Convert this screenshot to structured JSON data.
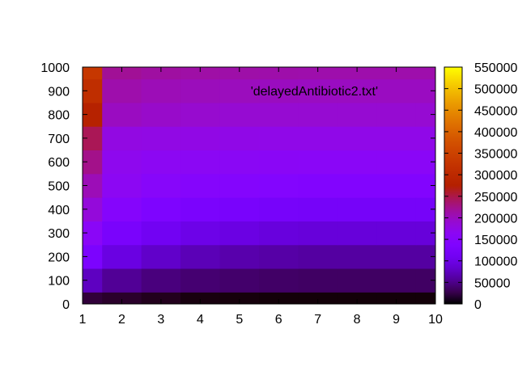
{
  "chart_data": {
    "type": "heatmap",
    "title": "",
    "xlabel": "",
    "ylabel": "",
    "key_title": "'delayedAntibiotic2.txt'",
    "colormap": "gnuplot (black-blue-purple-red-orange-yellow)",
    "xlim": [
      1,
      10
    ],
    "ylim": [
      0,
      1000
    ],
    "zlim": [
      0,
      550000
    ],
    "x_ticks": [
      "1",
      "2",
      "3",
      "4",
      "5",
      "6",
      "7",
      "8",
      "9",
      "10"
    ],
    "y_ticks": [
      "0",
      "100",
      "200",
      "300",
      "400",
      "500",
      "600",
      "700",
      "800",
      "900",
      "1000"
    ],
    "colorbar_ticks": [
      "0",
      "50000",
      "100000",
      "150000",
      "200000",
      "250000",
      "300000",
      "350000",
      "400000",
      "450000",
      "500000",
      "550000"
    ],
    "x_centers": [
      1,
      2,
      3,
      4,
      5,
      6,
      7,
      8,
      9,
      10
    ],
    "y_centers": [
      0,
      100,
      200,
      300,
      400,
      500,
      600,
      700,
      800,
      900,
      1000
    ],
    "z": [
      [
        20000,
        15000,
        10000,
        5000,
        4000,
        3000,
        3000,
        3000,
        3000,
        3000
      ],
      [
        75000,
        55000,
        45000,
        40000,
        38000,
        36000,
        35000,
        35000,
        35000,
        35000
      ],
      [
        130000,
        95000,
        80000,
        70000,
        65000,
        62000,
        60000,
        60000,
        60000,
        60000
      ],
      [
        160000,
        125000,
        110000,
        100000,
        96000,
        92000,
        90000,
        90000,
        90000,
        90000
      ],
      [
        185000,
        150000,
        135000,
        128000,
        124000,
        120000,
        118000,
        118000,
        118000,
        118000
      ],
      [
        205000,
        165000,
        155000,
        150000,
        147000,
        145000,
        143000,
        143000,
        143000,
        143000
      ],
      [
        225000,
        170000,
        165000,
        163000,
        162000,
        161000,
        160000,
        160000,
        160000,
        160000
      ],
      [
        245000,
        180000,
        178000,
        177000,
        176000,
        175000,
        175000,
        175000,
        175000,
        175000
      ],
      [
        280000,
        200000,
        195000,
        192000,
        190000,
        190000,
        190000,
        190000,
        190000,
        190000
      ],
      [
        310000,
        210000,
        205000,
        203000,
        202000,
        201000,
        200000,
        200000,
        200000,
        200000
      ],
      [
        330000,
        220000,
        215000,
        213000,
        212000,
        211000,
        210000,
        210000,
        210000,
        210000
      ]
    ]
  }
}
